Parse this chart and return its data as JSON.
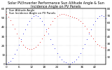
{
  "title": "Solar PV/Inverter Performance Sun Altitude Angle & Sun Incidence Angle on PV Panels",
  "background_color": "#ffffff",
  "grid_color": "#aaaaaa",
  "series": [
    {
      "label": "Sun Altitude Angle",
      "color": "#0000dd",
      "x": [
        0,
        1,
        2,
        3,
        4,
        5,
        6,
        7,
        8,
        9,
        10,
        11,
        12,
        13,
        14,
        15,
        16,
        17,
        18,
        19,
        20,
        21,
        22,
        23,
        24,
        25,
        26,
        27,
        28,
        29,
        30,
        31,
        32,
        33,
        34,
        35,
        36,
        37,
        38,
        39,
        40,
        41,
        42,
        43,
        44,
        45,
        46,
        47
      ],
      "y": [
        1,
        2,
        4,
        7,
        11,
        16,
        21,
        27,
        33,
        38,
        43,
        47,
        50,
        52,
        53,
        52,
        50,
        47,
        43,
        38,
        33,
        27,
        22,
        17,
        12,
        8,
        5,
        3,
        2,
        1,
        1,
        2,
        3,
        5,
        8,
        12,
        17,
        22,
        27,
        33,
        38,
        43,
        47,
        50,
        52,
        53,
        52,
        50
      ]
    },
    {
      "label": "Sun Incidence Angle on PV Panels",
      "color": "#dd0000",
      "x": [
        0,
        1,
        2,
        3,
        4,
        5,
        6,
        7,
        8,
        9,
        10,
        11,
        12,
        13,
        14,
        15,
        16,
        17,
        18,
        19,
        20,
        21,
        22,
        23,
        24,
        25,
        26,
        27,
        28,
        29,
        30,
        31,
        32,
        33,
        34,
        35,
        36,
        37,
        38,
        39,
        40,
        41,
        42,
        43,
        44,
        45,
        46,
        47
      ],
      "y": [
        72,
        68,
        63,
        57,
        51,
        44,
        38,
        33,
        28,
        25,
        23,
        22,
        22,
        23,
        25,
        28,
        32,
        37,
        42,
        47,
        52,
        57,
        62,
        66,
        69,
        71,
        72,
        72,
        71,
        70,
        69,
        68,
        67,
        66,
        64,
        62,
        59,
        55,
        51,
        46,
        41,
        37,
        33,
        29,
        27,
        25,
        24,
        24
      ]
    }
  ],
  "xlim": [
    0,
    47
  ],
  "ylim_left": [
    0,
    60
  ],
  "ylim_right": [
    0,
    80
  ],
  "yticks_left": [
    0,
    10,
    20,
    30,
    40,
    50,
    60
  ],
  "yticks_right": [
    10,
    20,
    30,
    40,
    50,
    60,
    70,
    80
  ],
  "xtick_step": 6,
  "title_fontsize": 3.5,
  "tick_fontsize": 3,
  "legend_fontsize": 2.8,
  "dot_size": 1.2
}
